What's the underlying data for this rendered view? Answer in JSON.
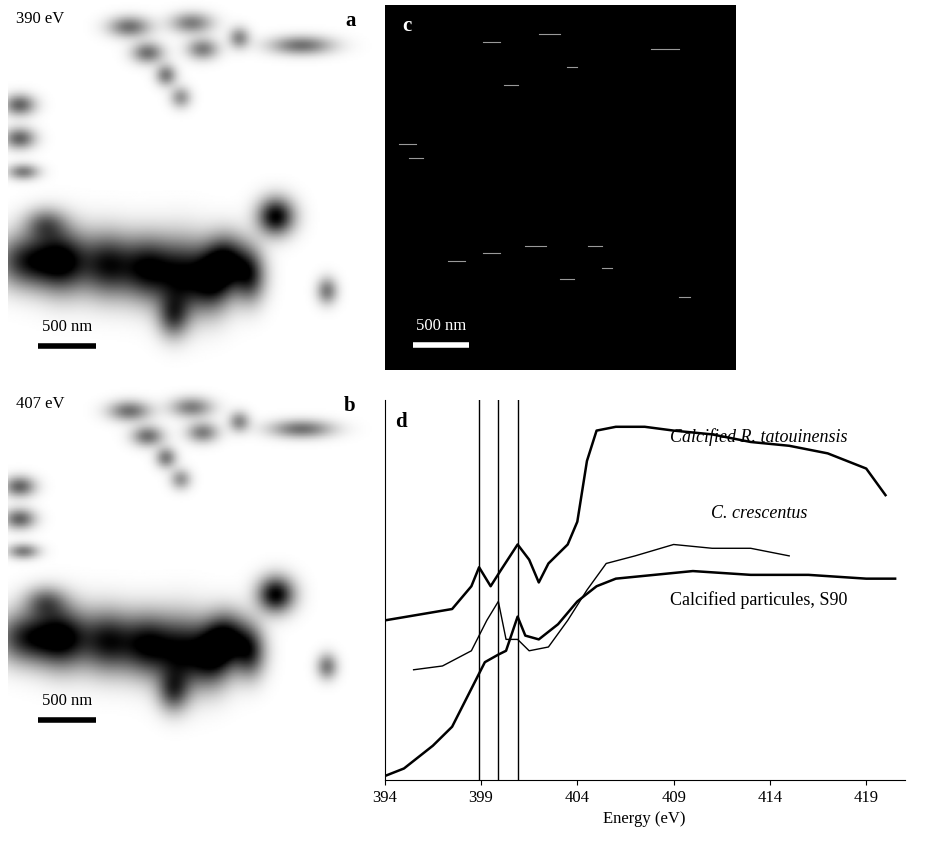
{
  "chart_data": [
    {
      "type": "image",
      "panel": "a",
      "label": "390 eV",
      "scale_bar": "500 nm"
    },
    {
      "type": "image",
      "panel": "b",
      "label": "407 eV",
      "scale_bar": "500 nm"
    },
    {
      "type": "image",
      "panel": "c",
      "scale_bar": "500 nm"
    },
    {
      "type": "line",
      "panel": "d",
      "x_label": "Energy (eV)",
      "xlim": [
        394,
        421
      ],
      "xticks": [
        394,
        399,
        404,
        409,
        414,
        419
      ],
      "ylim": [
        0,
        1
      ],
      "tick_labels": "x",
      "reference_lines": [
        398.9,
        399.9,
        400.9
      ],
      "series": [
        {
          "name": "Calcified R. tatouinensis",
          "color": "#000000",
          "line_style": "solid",
          "x": [
            394,
            397.5,
            398.5,
            398.9,
            399.5,
            400,
            400.9,
            401.5,
            402,
            402.5,
            403.5,
            404,
            404.5,
            405,
            406,
            407.5,
            409,
            411,
            413,
            415,
            417,
            419,
            420
          ],
          "values": [
            0.42,
            0.45,
            0.51,
            0.56,
            0.51,
            0.55,
            0.62,
            0.58,
            0.52,
            0.57,
            0.62,
            0.68,
            0.84,
            0.92,
            0.93,
            0.93,
            0.92,
            0.91,
            0.89,
            0.88,
            0.86,
            0.82,
            0.75
          ]
        },
        {
          "name": "C. crescentus",
          "color": "#000000",
          "line_style": "solid",
          "x": [
            395.5,
            397,
            398.5,
            399.3,
            399.9,
            400.3,
            400.9,
            401.5,
            402.5,
            403.5,
            404.5,
            405.5,
            407,
            409,
            411,
            413,
            415
          ],
          "values": [
            0.29,
            0.3,
            0.34,
            0.42,
            0.47,
            0.37,
            0.37,
            0.34,
            0.35,
            0.42,
            0.5,
            0.57,
            0.59,
            0.62,
            0.61,
            0.61,
            0.59
          ]
        },
        {
          "name": "Calcified particules, S90",
          "color": "#000000",
          "line_style": "solid",
          "x": [
            394,
            395,
            396.5,
            397.5,
            398.5,
            399.2,
            399.9,
            400.3,
            400.9,
            401.3,
            402,
            403,
            404,
            405,
            406,
            408,
            410,
            413,
            416,
            419,
            420.5
          ],
          "values": [
            0.01,
            0.03,
            0.09,
            0.14,
            0.24,
            0.31,
            0.33,
            0.34,
            0.43,
            0.38,
            0.37,
            0.41,
            0.47,
            0.51,
            0.53,
            0.54,
            0.55,
            0.54,
            0.54,
            0.53,
            0.53
          ]
        }
      ]
    }
  ]
}
